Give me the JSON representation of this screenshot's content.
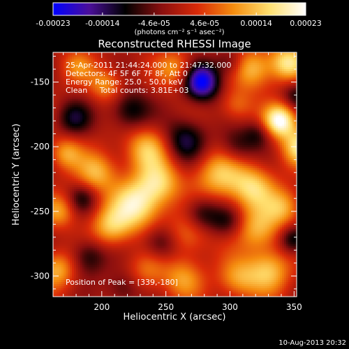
{
  "chart_data": {
    "type": "heatmap",
    "title": "Reconstructed RHESSI Image",
    "xlabel": "Heliocentric X (arcsec)",
    "ylabel": "Heliocentric Y (arcsec)",
    "xlim": [
      162,
      352
    ],
    "ylim": [
      -316,
      -127
    ],
    "x_ticks": [
      200,
      250,
      300,
      350
    ],
    "y_ticks": [
      -150,
      -200,
      -250,
      -300
    ],
    "info_lines": [
      "25-Apr-2011 21:44:24.000 to 21:47:32.000",
      "Detectors: 4F 5F 6F 7F 8F, Att 0",
      "Energy Range: 25.0 - 50.0 keV",
      "Clean     Total counts: 3.81E+03"
    ],
    "peak_label": "Position of Peak = [339,-180]",
    "peak_position": [
      339,
      -180
    ],
    "colorbar": {
      "ticks": [
        "-0.00023",
        "-0.00014",
        "-4.6e-05",
        "4.6e-05",
        "0.00014",
        "0.00023"
      ],
      "tick_values": [
        -0.00023,
        -0.00014,
        -4.6e-05,
        4.6e-05,
        0.00014,
        0.00023
      ],
      "range": [
        -0.00023,
        0.00023
      ],
      "unit_label": "(photons cm⁻² s⁻¹ asec⁻²)",
      "stops": [
        "#0000ff",
        "#4b0f9a",
        "#000000",
        "#8a0f0f",
        "#d92a08",
        "#f58d0f",
        "#ffe070",
        "#ffffff"
      ]
    },
    "sources": [
      {
        "x": 339,
        "y": -180,
        "v": 1.0,
        "s": 9
      },
      {
        "x": 355,
        "y": -200,
        "v": 0.75,
        "s": 10
      },
      {
        "x": 345,
        "y": -135,
        "v": 0.75,
        "s": 10
      },
      {
        "x": 318,
        "y": -140,
        "v": 0.6,
        "s": 11
      },
      {
        "x": 227,
        "y": -245,
        "v": 0.8,
        "s": 14
      },
      {
        "x": 245,
        "y": -228,
        "v": 0.6,
        "s": 12
      },
      {
        "x": 235,
        "y": -202,
        "v": 0.6,
        "s": 12
      },
      {
        "x": 196,
        "y": -220,
        "v": 0.55,
        "s": 11
      },
      {
        "x": 207,
        "y": -262,
        "v": 0.55,
        "s": 11
      },
      {
        "x": 172,
        "y": -205,
        "v": 0.5,
        "s": 9
      },
      {
        "x": 167,
        "y": -250,
        "v": 0.45,
        "s": 9
      },
      {
        "x": 165,
        "y": -295,
        "v": 0.55,
        "s": 10
      },
      {
        "x": 292,
        "y": -222,
        "v": 0.6,
        "s": 14
      },
      {
        "x": 318,
        "y": -232,
        "v": 0.65,
        "s": 12
      },
      {
        "x": 322,
        "y": -264,
        "v": 0.55,
        "s": 12
      },
      {
        "x": 342,
        "y": -247,
        "v": 0.5,
        "s": 10
      },
      {
        "x": 330,
        "y": -296,
        "v": 0.6,
        "s": 12
      },
      {
        "x": 306,
        "y": -302,
        "v": 0.5,
        "s": 11
      },
      {
        "x": 268,
        "y": -268,
        "v": 0.4,
        "s": 12
      },
      {
        "x": 263,
        "y": -302,
        "v": 0.45,
        "s": 11
      },
      {
        "x": 236,
        "y": -296,
        "v": 0.35,
        "s": 11
      },
      {
        "x": 203,
        "y": -152,
        "v": 0.45,
        "s": 9
      },
      {
        "x": 258,
        "y": -140,
        "v": 0.45,
        "s": 10
      },
      {
        "x": 305,
        "y": -168,
        "v": 0.35,
        "s": 9
      },
      {
        "x": 181,
        "y": -138,
        "v": 0.35,
        "s": 9
      },
      {
        "x": 278,
        "y": -150,
        "v": -1.0,
        "s": 10
      },
      {
        "x": 265,
        "y": -195,
        "v": -0.55,
        "s": 12
      },
      {
        "x": 278,
        "y": -252,
        "v": -0.5,
        "s": 10
      },
      {
        "x": 350,
        "y": -272,
        "v": -0.55,
        "s": 8
      },
      {
        "x": 222,
        "y": -172,
        "v": -0.5,
        "s": 11
      },
      {
        "x": 178,
        "y": -178,
        "v": -0.45,
        "s": 10
      },
      {
        "x": 190,
        "y": -285,
        "v": -0.45,
        "s": 10
      },
      {
        "x": 305,
        "y": -200,
        "v": -0.4,
        "s": 10
      },
      {
        "x": 246,
        "y": -275,
        "v": -0.45,
        "s": 10
      },
      {
        "x": 298,
        "y": -258,
        "v": -0.35,
        "s": 9
      },
      {
        "x": 217,
        "y": -310,
        "v": -0.35,
        "s": 10
      },
      {
        "x": 352,
        "y": -160,
        "v": -0.4,
        "s": 8
      },
      {
        "x": 322,
        "y": -190,
        "v": -0.35,
        "s": 8
      },
      {
        "x": 185,
        "y": -240,
        "v": -0.35,
        "s": 8
      },
      {
        "x": 300,
        "y": -135,
        "v": -0.35,
        "s": 8
      }
    ]
  },
  "footer_timestamp": "10-Aug-2013 20:32"
}
